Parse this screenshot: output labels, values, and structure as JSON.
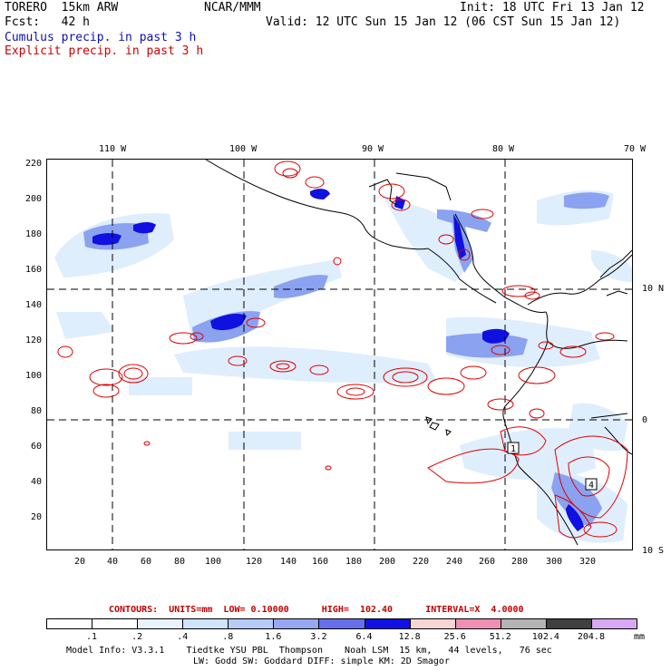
{
  "header": {
    "model": "TORERO  15km ARW",
    "org": "NCAR/MMM",
    "init": "Init: 18 UTC Fri 13 Jan 12",
    "fcst": "Fcst:   42 h",
    "valid": "Valid: 12 UTC Sun 15 Jan 12 (06 CST Sun 15 Jan 12)",
    "cumulus": "Cumulus precip. in past 3 h",
    "explicit": "Explicit precip. in past 3 h"
  },
  "map": {
    "lon_labels": [
      "110 W",
      "100 W",
      "90 W",
      "80 W",
      "70 W"
    ],
    "lat_labels": [
      "10 N",
      "0",
      "10 S"
    ],
    "y_ticks": [
      "220",
      "200",
      "180",
      "160",
      "140",
      "120",
      "100",
      "80",
      "60",
      "40",
      "20"
    ],
    "x_ticks": [
      "20",
      "40",
      "60",
      "80",
      "100",
      "120",
      "140",
      "160",
      "180",
      "200",
      "220",
      "240",
      "260",
      "280",
      "300",
      "320"
    ],
    "contour_labels": [
      "1",
      "4"
    ]
  },
  "colors": {
    "blue_light": "#dfeefd",
    "blue_mid": "#8aa2f0",
    "blue_dark": "#1010e0",
    "contour_red": "#e00000",
    "coast": "#000000"
  },
  "footer": {
    "contours_line": "CONTOURS:  UNITS=mm  LOW= 0.10000      HIGH=  102.40      INTERVAL=X  4.0000",
    "colorbar": {
      "labels": [
        ".1",
        ".2",
        ".4",
        ".8",
        "1.6",
        "3.2",
        "6.4",
        "12.8",
        "25.6",
        "51.2",
        "102.4",
        "204.8"
      ],
      "unit": "mm",
      "colors": [
        "#ffffff",
        "#ffffff",
        "#eaf3fd",
        "#cfe3fa",
        "#b6ccf6",
        "#96a8f2",
        "#6670ec",
        "#1010e8",
        "#f7d5d5",
        "#ef8fb4",
        "#b4b4b4",
        "#404040",
        "#d8a8f4"
      ]
    },
    "model_info_1": "Model Info: V3.3.1    Tiedtke YSU PBL  Thompson    Noah LSM  15 km,   44 levels,   76 sec",
    "model_info_2": "LW: Godd SW: Goddard DIFF: simple KM: 2D Smagor"
  }
}
